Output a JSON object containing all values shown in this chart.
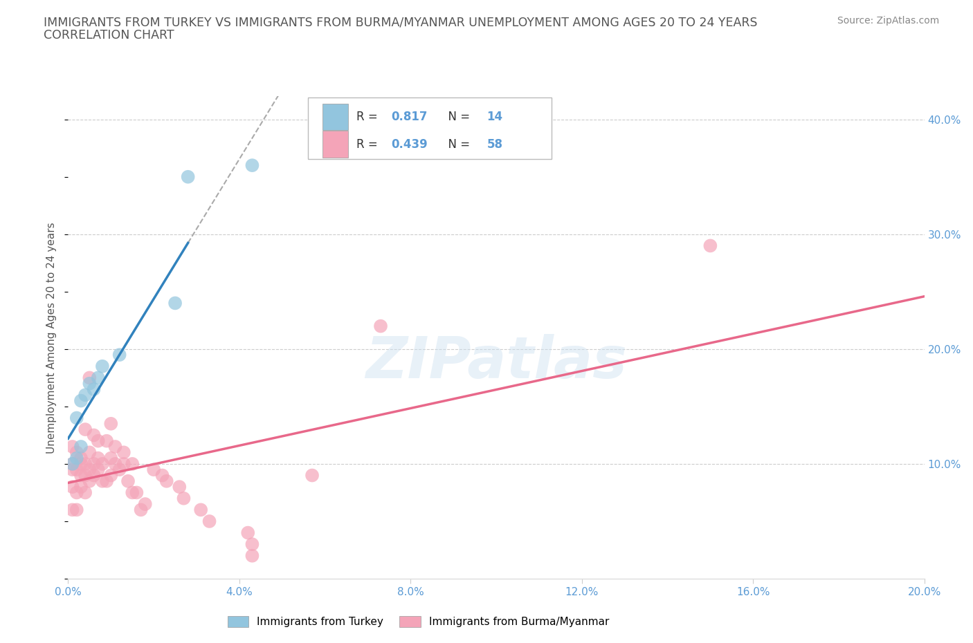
{
  "title_line1": "IMMIGRANTS FROM TURKEY VS IMMIGRANTS FROM BURMA/MYANMAR UNEMPLOYMENT AMONG AGES 20 TO 24 YEARS",
  "title_line2": "CORRELATION CHART",
  "source": "Source: ZipAtlas.com",
  "ylabel": "Unemployment Among Ages 20 to 24 years",
  "xlim": [
    0.0,
    0.2
  ],
  "ylim": [
    0.0,
    0.42
  ],
  "xticks": [
    0.0,
    0.04,
    0.08,
    0.12,
    0.16,
    0.2
  ],
  "ytick_vals": [
    0.1,
    0.2,
    0.3,
    0.4
  ],
  "ytick_labels": [
    "10.0%",
    "20.0%",
    "30.0%",
    "40.0%"
  ],
  "xtick_labels": [
    "0.0%",
    "4.0%",
    "8.0%",
    "12.0%",
    "16.0%",
    "20.0%"
  ],
  "watermark": "ZIPatlas",
  "turkey_color": "#92c5de",
  "burma_color": "#f4a4b8",
  "turkey_line_color": "#3182bd",
  "burma_line_color": "#e8688a",
  "turkey_R": 0.817,
  "turkey_N": 14,
  "burma_R": 0.439,
  "burma_N": 58,
  "turkey_points_x": [
    0.001,
    0.002,
    0.002,
    0.003,
    0.003,
    0.004,
    0.005,
    0.006,
    0.007,
    0.008,
    0.012,
    0.025,
    0.028,
    0.043
  ],
  "turkey_points_y": [
    0.1,
    0.105,
    0.14,
    0.115,
    0.155,
    0.16,
    0.17,
    0.165,
    0.175,
    0.185,
    0.195,
    0.24,
    0.35,
    0.36
  ],
  "burma_points_x": [
    0.001,
    0.001,
    0.001,
    0.001,
    0.001,
    0.002,
    0.002,
    0.002,
    0.002,
    0.003,
    0.003,
    0.003,
    0.003,
    0.004,
    0.004,
    0.004,
    0.004,
    0.005,
    0.005,
    0.005,
    0.005,
    0.006,
    0.006,
    0.006,
    0.007,
    0.007,
    0.007,
    0.008,
    0.008,
    0.009,
    0.009,
    0.01,
    0.01,
    0.01,
    0.011,
    0.011,
    0.012,
    0.013,
    0.013,
    0.014,
    0.015,
    0.015,
    0.016,
    0.017,
    0.018,
    0.02,
    0.022,
    0.023,
    0.026,
    0.027,
    0.031,
    0.033,
    0.042,
    0.043,
    0.043,
    0.057,
    0.073,
    0.15
  ],
  "burma_points_y": [
    0.06,
    0.08,
    0.095,
    0.1,
    0.115,
    0.06,
    0.075,
    0.095,
    0.11,
    0.08,
    0.09,
    0.1,
    0.105,
    0.075,
    0.09,
    0.1,
    0.13,
    0.085,
    0.095,
    0.11,
    0.175,
    0.09,
    0.1,
    0.125,
    0.095,
    0.105,
    0.12,
    0.085,
    0.1,
    0.085,
    0.12,
    0.09,
    0.105,
    0.135,
    0.1,
    0.115,
    0.095,
    0.1,
    0.11,
    0.085,
    0.075,
    0.1,
    0.075,
    0.06,
    0.065,
    0.095,
    0.09,
    0.085,
    0.08,
    0.07,
    0.06,
    0.05,
    0.04,
    0.03,
    0.02,
    0.09,
    0.22,
    0.29
  ],
  "background_color": "#ffffff",
  "grid_color": "#cccccc",
  "title_color": "#555555",
  "axis_tick_color": "#5b9bd5",
  "legend_text_color": "#333333",
  "source_color": "#888888"
}
